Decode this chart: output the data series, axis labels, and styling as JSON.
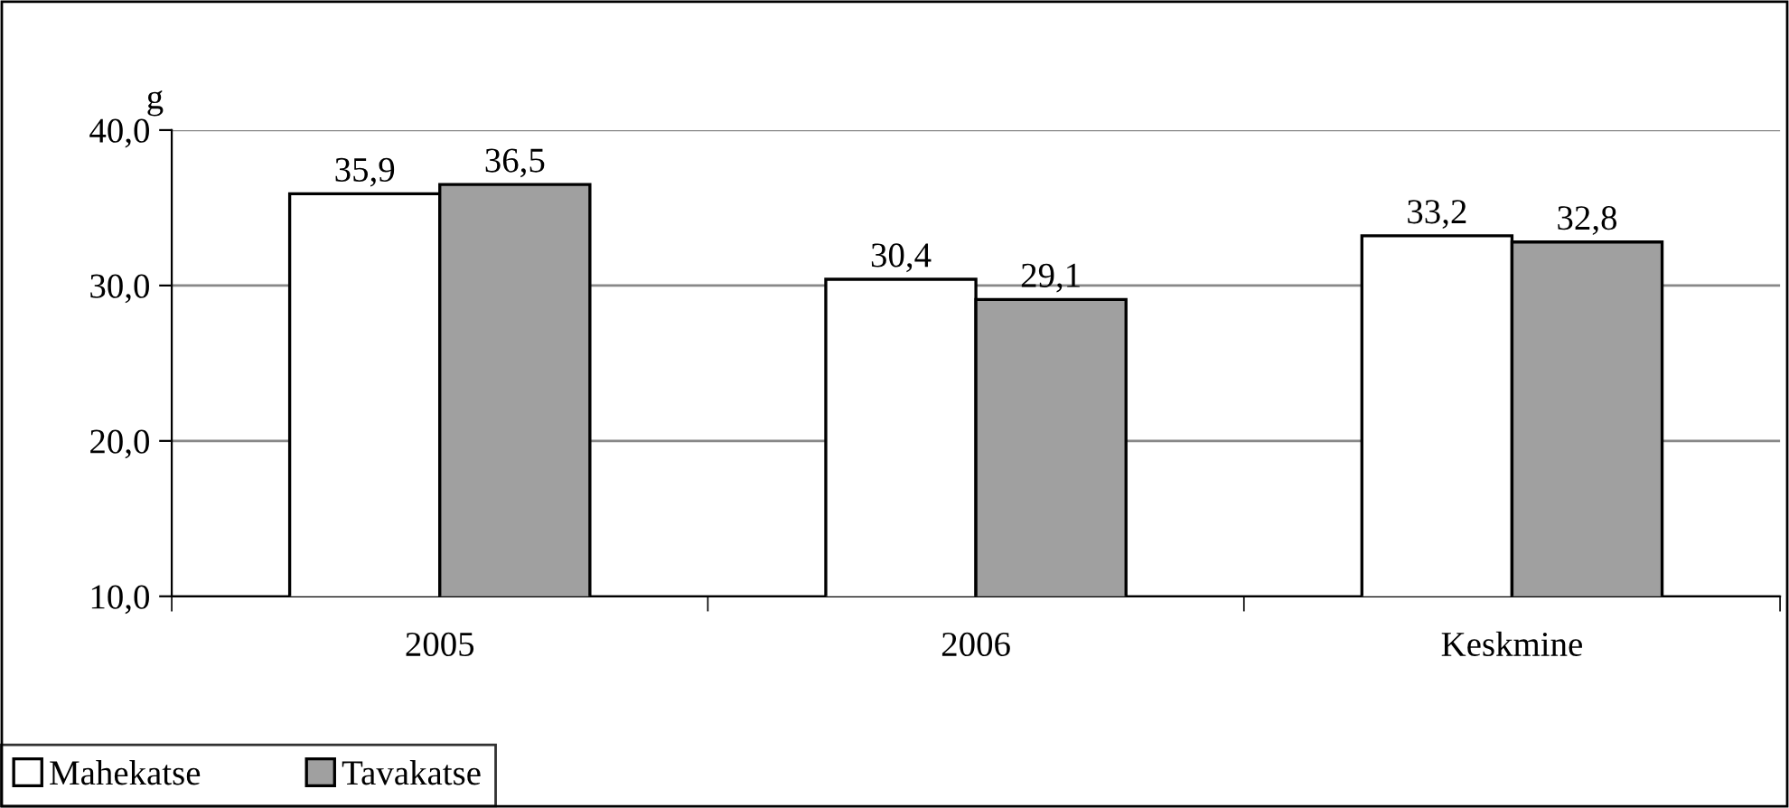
{
  "chart_data": {
    "type": "bar",
    "ylabel": "g",
    "categories": [
      "2005",
      "2006",
      "Keskmine"
    ],
    "series": [
      {
        "name": "Mahekatse",
        "color": "#ffffff",
        "values": [
          35.9,
          30.4,
          33.2
        ],
        "value_labels": [
          "35,9",
          "30,4",
          "33,2"
        ]
      },
      {
        "name": "Tavakatse",
        "color": "#a0a0a0",
        "values": [
          36.5,
          29.1,
          32.8
        ],
        "value_labels": [
          "36,5",
          "29,1",
          "32,8"
        ]
      }
    ],
    "ylim": [
      10,
      40
    ],
    "yticks": [
      {
        "value": 10,
        "label": "10,0"
      },
      {
        "value": 20,
        "label": "20,0"
      },
      {
        "value": 30,
        "label": "30,0"
      },
      {
        "value": 40,
        "label": "40,0"
      }
    ],
    "grid": "y",
    "legend": "bottom left"
  }
}
